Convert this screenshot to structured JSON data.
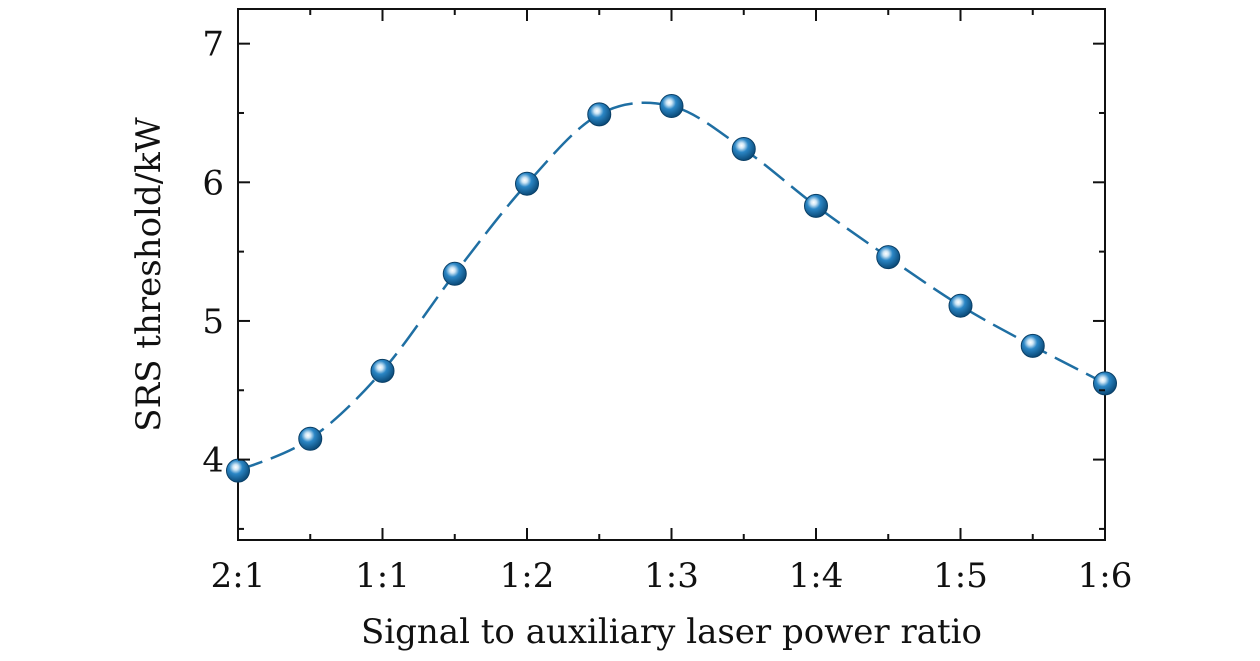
{
  "chart_data": {
    "type": "line",
    "title": "",
    "xlabel": "Signal to auxiliary laser power ratio",
    "ylabel": "SRS threshold/kW",
    "x_tick_labels": [
      "2:1",
      "1:1",
      "1:2",
      "1:3",
      "1:4",
      "1:5",
      "1:6"
    ],
    "y_ticks": [
      4,
      5,
      6,
      7
    ],
    "y_tick_labels": [
      "4",
      "5",
      "6",
      "7"
    ],
    "ylim": [
      3.42,
      7.25
    ],
    "grid": false,
    "legend": "none",
    "series_color": "#1f6fa3",
    "categories": [
      "2:1",
      "",
      "1:1",
      "",
      "1:2",
      "",
      "1:3",
      "",
      "1:4",
      "",
      "1:5",
      "",
      "1:6"
    ],
    "series": [
      {
        "values": [
          3.92,
          4.15,
          4.64,
          5.34,
          5.99,
          6.49,
          6.55,
          6.24,
          5.83,
          5.46,
          5.11,
          4.82,
          4.55
        ]
      }
    ]
  }
}
